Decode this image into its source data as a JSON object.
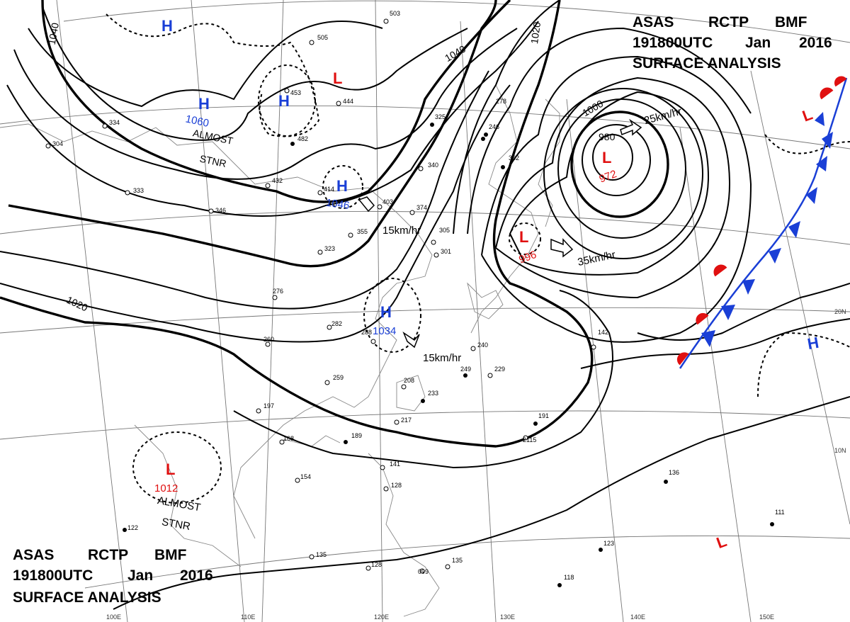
{
  "header_top": {
    "line1_parts": [
      "ASAS",
      "RCTP",
      "BMF"
    ],
    "line2_parts": [
      "191800UTC",
      "Jan",
      "2016"
    ],
    "line3": "SURFACE ANALYSIS"
  },
  "header_bottom": {
    "line1_parts": [
      "ASAS",
      "RCTP",
      "BMF"
    ],
    "line2_parts": [
      "191800UTC",
      "Jan",
      "2016"
    ],
    "line3": "SURFACE ANALYSIS"
  },
  "isobar_labels": [
    "1040",
    "1040",
    "1020",
    "1020",
    "1000",
    "980"
  ],
  "pressure_centers": [
    {
      "type": "H",
      "symbol": "H",
      "value": ""
    },
    {
      "type": "H",
      "symbol": "H",
      "value": "1060",
      "note_lines": [
        "ALMOST",
        "STNR"
      ]
    },
    {
      "type": "H",
      "symbol": "H",
      "value": ""
    },
    {
      "type": "H",
      "symbol": "H",
      "value": "1046"
    },
    {
      "type": "H",
      "symbol": "H",
      "value": "1034"
    },
    {
      "type": "L",
      "symbol": "L",
      "value": ""
    },
    {
      "type": "L",
      "symbol": "L",
      "value": "972"
    },
    {
      "type": "L",
      "symbol": "L",
      "value": "996"
    },
    {
      "type": "L",
      "symbol": "L",
      "value": "1012",
      "note_lines": [
        "ALMOST",
        "STNR"
      ]
    },
    {
      "type": "L",
      "symbol": "L",
      "value": ""
    },
    {
      "type": "L",
      "symbol": "L",
      "value": ""
    },
    {
      "type": "H",
      "symbol": "H",
      "value": ""
    }
  ],
  "movement_labels": [
    "15km/hr",
    "15km/hr",
    "25km/hr",
    "35km/hr"
  ],
  "longitude_labels": [
    "100E",
    "110E",
    "120E",
    "130E",
    "140E",
    "150E"
  ],
  "latitude_labels": [
    "20N",
    "10N"
  ],
  "station_values": [
    "503",
    "505",
    "453",
    "444",
    "482",
    "432",
    "414",
    "403",
    "374",
    "355",
    "323",
    "340",
    "325",
    "334",
    "304",
    "333",
    "346",
    "278",
    "246",
    "362",
    "288",
    "276",
    "260",
    "282",
    "259",
    "197",
    "168",
    "189",
    "154",
    "141",
    "128",
    "122",
    "135",
    "128",
    "099",
    "135",
    "118",
    "123",
    "111",
    "136",
    "191",
    "229",
    "233",
    "217",
    "240",
    "249",
    "208",
    "142",
    "2115",
    "305",
    "301"
  ],
  "colors": {
    "high": "#1a3fd6",
    "low": "#e01010",
    "warm_front": "#e01010",
    "cold_front": "#1a3fd6",
    "isobar": "#000000",
    "grid": "#777777",
    "coast": "#888888"
  }
}
